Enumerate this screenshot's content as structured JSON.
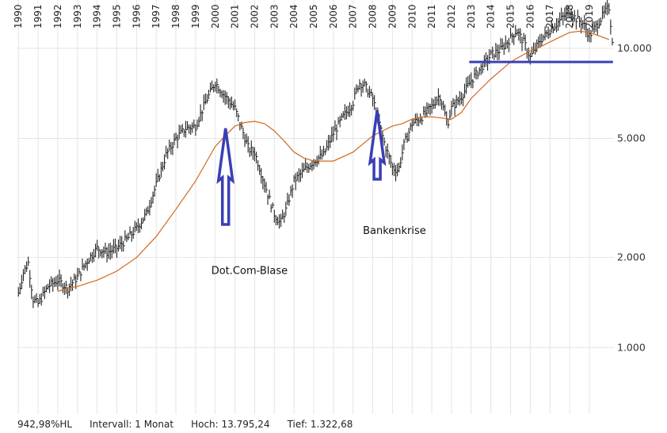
{
  "chart_data": {
    "type": "line",
    "xlabel": "",
    "ylabel": "",
    "scale": "log",
    "ylim": [
      600,
      14500
    ],
    "xlim": [
      1989.95,
      2020.25
    ],
    "grid": true,
    "x_tick_labels": [
      "1990",
      "1991",
      "1992",
      "1993",
      "1994",
      "1995",
      "1996",
      "1997",
      "1998",
      "1999",
      "2000",
      "2001",
      "2002",
      "2003",
      "2004",
      "2005",
      "2006",
      "2007",
      "2008",
      "2009",
      "2010",
      "2011",
      "2012",
      "2013",
      "2014",
      "2015",
      "2016",
      "2017",
      "2018",
      "2019"
    ],
    "y_ticks": [
      {
        "value": 10000,
        "label": "10.000"
      },
      {
        "value": 5000,
        "label": "5.000"
      },
      {
        "value": 2000,
        "label": "2.000"
      },
      {
        "value": 1000,
        "label": "1.000"
      }
    ],
    "series": [
      {
        "style": "ohlc",
        "color": "#222222",
        "x": [
          1990.0,
          1990.25,
          1990.5,
          1990.75,
          1991.0,
          1991.5,
          1992.0,
          1992.5,
          1993.0,
          1993.5,
          1994.0,
          1994.5,
          1995.0,
          1995.5,
          1996.0,
          1996.5,
          1997.0,
          1997.5,
          1998.0,
          1998.5,
          1999.0,
          1999.5,
          2000.0,
          2000.3,
          2000.6,
          2001.0,
          2001.3,
          2001.7,
          2002.0,
          2002.3,
          2002.7,
          2003.0,
          2003.3,
          2003.6,
          2004.0,
          2004.5,
          2005.0,
          2005.5,
          2006.0,
          2006.5,
          2007.0,
          2007.3,
          2007.6,
          2008.0,
          2008.3,
          2008.6,
          2009.0,
          2009.3,
          2009.6,
          2010.0,
          2010.5,
          2011.0,
          2011.4,
          2011.8,
          2012.0,
          2012.5,
          2013.0,
          2013.5,
          2014.0,
          2014.5,
          2015.0,
          2015.3,
          2015.7,
          2016.0,
          2016.5,
          2017.0,
          2017.5,
          2018.0,
          2018.3,
          2018.7,
          2019.0,
          2019.5,
          2019.8,
          2020.0,
          2020.2
        ],
        "values": [
          1520,
          1780,
          1920,
          1450,
          1400,
          1600,
          1680,
          1580,
          1720,
          1950,
          2150,
          2080,
          2150,
          2300,
          2500,
          2800,
          3500,
          4400,
          5000,
          5400,
          5500,
          6600,
          7700,
          7200,
          6800,
          6300,
          5500,
          4600,
          4500,
          3900,
          3200,
          2800,
          2600,
          2900,
          3600,
          3900,
          4200,
          4400,
          5200,
          5900,
          6600,
          7700,
          7500,
          6800,
          5700,
          4800,
          4000,
          3900,
          4800,
          5600,
          5900,
          6400,
          7000,
          5600,
          6300,
          6900,
          7800,
          8600,
          9500,
          9900,
          10800,
          11500,
          10400,
          9300,
          10600,
          11500,
          12400,
          13300,
          12600,
          12100,
          11000,
          12300,
          13200,
          13700,
          10200
        ]
      },
      {
        "name": "",
        "style": "line",
        "color": "#d2691e",
        "x": [
          1992.0,
          1992.5,
          1993.0,
          1993.5,
          1994.0,
          1995.0,
          1996.0,
          1997.0,
          1998.0,
          1999.0,
          2000.0,
          2000.5,
          2001.0,
          2001.5,
          2002.0,
          2002.5,
          2003.0,
          2003.5,
          2004.0,
          2004.5,
          2005.0,
          2006.0,
          2007.0,
          2008.0,
          2008.5,
          2009.0,
          2009.5,
          2010.0,
          2010.5,
          2011.0,
          2011.5,
          2012.0,
          2012.5,
          2013.0,
          2014.0,
          2015.0,
          2015.5,
          2016.0,
          2016.5,
          2017.0,
          2017.5,
          2018.0,
          2018.5,
          2019.0,
          2019.5,
          2020.0
        ],
        "values": [
          1540,
          1580,
          1600,
          1640,
          1680,
          1800,
          2000,
          2350,
          2900,
          3600,
          4700,
          5100,
          5500,
          5650,
          5700,
          5600,
          5300,
          4900,
          4500,
          4300,
          4200,
          4200,
          4500,
          5100,
          5300,
          5500,
          5600,
          5800,
          5900,
          5900,
          5850,
          5800,
          6100,
          6800,
          7900,
          9000,
          9400,
          9800,
          10100,
          10500,
          10900,
          11300,
          11400,
          11300,
          11000,
          10700
        ]
      },
      {
        "style": "hline",
        "color": "#3a3fb5",
        "x": [
          2012.9,
          2020.2
        ],
        "values": [
          9000,
          9000
        ]
      }
    ],
    "annotations": [
      {
        "text": "Dot.Com-Blase",
        "x": 2000.2,
        "y": 1760,
        "arrow_tip_y": 5400
      },
      {
        "text": "Bankenkrise",
        "x": 2007.9,
        "y": 2400,
        "arrow_tip_y": 6200
      }
    ]
  },
  "status": {
    "change": "942,98%HL",
    "interval": "Intervall: 1 Monat",
    "high": "Hoch: 13.795,24",
    "low": "Tief: 1.322,68"
  }
}
